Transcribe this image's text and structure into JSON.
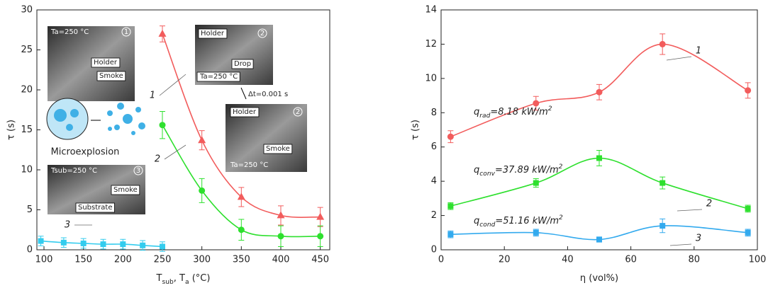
{
  "chart_data": [
    {
      "type": "line",
      "xlim": [
        91,
        462
      ],
      "xticks": [
        100,
        150,
        200,
        250,
        300,
        350,
        400,
        450
      ],
      "ylim": [
        0,
        30
      ],
      "yticks": [
        0,
        5,
        10,
        15,
        20,
        25,
        30
      ],
      "xlabel": [
        {
          "text": "T",
          "sub": "sub"
        },
        {
          "text": ", T",
          "sub": "a"
        },
        {
          "text": " (°C)"
        }
      ],
      "ylabel": "τ (s)",
      "series": [
        {
          "name": "1",
          "color": "#f25c5c",
          "marker": "triangle",
          "x": [
            250,
            300,
            350,
            400,
            450
          ],
          "values": [
            27,
            13.7,
            6.6,
            4.3,
            4.1
          ],
          "errors": [
            1.0,
            1.2,
            1.2,
            1.2,
            1.2
          ]
        },
        {
          "name": "2",
          "color": "#2ee02e",
          "marker": "circle",
          "x": [
            250,
            300,
            350,
            400,
            450
          ],
          "values": [
            15.6,
            7.4,
            2.5,
            1.7,
            1.7
          ],
          "errors": [
            1.7,
            1.5,
            1.3,
            1.3,
            1.3
          ]
        },
        {
          "name": "3",
          "color": "#33ccee",
          "marker": "square",
          "x": [
            96,
            125,
            150,
            175,
            200,
            225,
            250
          ],
          "values": [
            1.1,
            0.9,
            0.8,
            0.7,
            0.7,
            0.55,
            0.4
          ],
          "errors": [
            0.6,
            0.6,
            0.6,
            0.6,
            0.6,
            0.6,
            0.6
          ]
        }
      ],
      "insets": [
        [
          "Ta=250 °C",
          "1",
          "Holder",
          "Smoke"
        ],
        [
          "Holder",
          "2",
          "Drop",
          "Ta=250 °C"
        ],
        [
          "Holder",
          "2",
          "Smoke",
          "Ta=250 °C"
        ],
        [
          "Tsub=250 °C",
          "3",
          "Smoke",
          "Substrate"
        ]
      ],
      "notes": [
        "Δt=0.001 s",
        "Microexplosion"
      ]
    },
    {
      "type": "line",
      "xlim": [
        0,
        100
      ],
      "xticks": [
        0,
        20,
        40,
        60,
        80,
        100
      ],
      "ylim": [
        0,
        14
      ],
      "yticks": [
        0,
        2,
        4,
        6,
        8,
        10,
        12,
        14
      ],
      "xlabel": [
        {
          "text": "η (vol%)"
        }
      ],
      "ylabel": "τ (s)",
      "series": [
        {
          "name": "1",
          "color": "#f25c5c",
          "marker": "circle",
          "x": [
            3,
            30,
            50,
            70,
            97
          ],
          "values": [
            6.6,
            8.55,
            9.2,
            12.0,
            9.3
          ],
          "errors": [
            0.35,
            0.4,
            0.45,
            0.6,
            0.45
          ]
        },
        {
          "name": "2",
          "color": "#2ee02e",
          "marker": "square",
          "x": [
            3,
            30,
            50,
            70,
            97
          ],
          "values": [
            2.55,
            3.9,
            5.35,
            3.9,
            2.4
          ],
          "errors": [
            0.2,
            0.25,
            0.45,
            0.35,
            0.2
          ]
        },
        {
          "name": "3",
          "color": "#33aaee",
          "marker": "square",
          "x": [
            3,
            30,
            50,
            70,
            97
          ],
          "values": [
            0.9,
            1.0,
            0.6,
            1.4,
            1.0
          ],
          "errors": [
            0.2,
            0.2,
            0.15,
            0.4,
            0.2
          ]
        }
      ],
      "annotations": [
        [
          {
            "text": "q",
            "sub": "rad"
          },
          {
            "text": "=8.18 kW/m",
            "sup": "2"
          }
        ],
        [
          {
            "text": "q",
            "sub": "conv"
          },
          {
            "text": "=37.89 kW/m",
            "sup": "2"
          }
        ],
        [
          {
            "text": "q",
            "sub": "cond"
          },
          {
            "text": "=51.16 kW/m",
            "sup": "2"
          }
        ]
      ]
    }
  ]
}
